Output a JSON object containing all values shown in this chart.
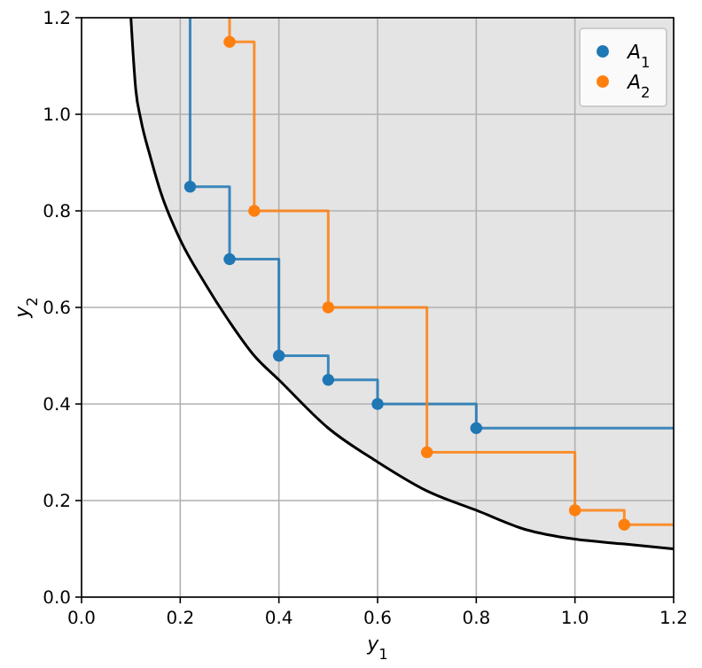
{
  "chart_data": {
    "type": "scatter",
    "xlabel": "y$_{1}$",
    "ylabel": "y$_{2}$",
    "xlim": [
      0,
      1.2
    ],
    "ylim": [
      0,
      1.2
    ],
    "xticks": [
      {
        "value": 0,
        "label": "0.0"
      },
      {
        "value": 0.2,
        "label": "0.2"
      },
      {
        "value": 0.4,
        "label": "0.4"
      },
      {
        "value": 0.6,
        "label": "0.6"
      },
      {
        "value": 0.8,
        "label": "0.8"
      },
      {
        "value": 1.0,
        "label": "1.0"
      },
      {
        "value": 1.2,
        "label": "1.2"
      }
    ],
    "yticks": [
      {
        "value": 0,
        "label": "0.0"
      },
      {
        "value": 0.2,
        "label": "0.2"
      },
      {
        "value": 0.4,
        "label": "0.4"
      },
      {
        "value": 0.6,
        "label": "0.6"
      },
      {
        "value": 0.8,
        "label": "0.8"
      },
      {
        "value": 1.0,
        "label": "1.0"
      },
      {
        "value": 1.2,
        "label": "1.2"
      }
    ],
    "grid": true,
    "legend": "top right",
    "series": [
      {
        "type": "line",
        "color": "#000000",
        "marker": "none",
        "x": [
          0.1,
          0.11,
          0.12,
          0.14,
          0.16,
          0.2,
          0.25,
          0.3,
          0.35,
          0.4,
          0.5,
          0.6,
          0.7,
          0.8,
          0.9,
          1.0,
          1.1,
          1.2
        ],
        "values": [
          1.2,
          1.05,
          0.99,
          0.91,
          0.84,
          0.74,
          0.65,
          0.57,
          0.5,
          0.45,
          0.35,
          0.28,
          0.22,
          0.18,
          0.14,
          0.12,
          0.11,
          0.1
        ],
        "lower": [
          1.2,
          1.05,
          0.99,
          0.91,
          0.84,
          0.74,
          0.65,
          0.57,
          0.5,
          0.45,
          0.35,
          0.28,
          0.22,
          0.18,
          0.14,
          0.12,
          0.11,
          0.1
        ],
        "upper": [
          1.2,
          1.2,
          1.2,
          1.2,
          1.2,
          1.2,
          1.2,
          1.2,
          1.2,
          1.2,
          1.2,
          1.2,
          1.2,
          1.2,
          1.2,
          1.2,
          1.2,
          1.2
        ]
      },
      {
        "type": "step",
        "color": "#1f77b4",
        "marker": "none",
        "x": [
          0.22,
          0.22,
          0.3,
          0.4,
          0.5,
          0.6,
          0.8,
          1.2
        ],
        "values": [
          1.2,
          0.85,
          0.7,
          0.5,
          0.45,
          0.4,
          0.35,
          0.35
        ]
      },
      {
        "type": "step",
        "color": "#ff7f0e",
        "marker": "none",
        "x": [
          0.3,
          0.3,
          0.35,
          0.5,
          0.7,
          1.0,
          1.1,
          1.2
        ],
        "values": [
          1.2,
          1.15,
          0.8,
          0.6,
          0.3,
          0.18,
          0.15,
          0.15
        ]
      },
      {
        "name": "A$_{1}$",
        "color": "#1f77b4",
        "marker": "circle",
        "x": [
          0.22,
          0.3,
          0.4,
          0.5,
          0.6,
          0.8
        ],
        "values": [
          0.85,
          0.7,
          0.5,
          0.45,
          0.4,
          0.35
        ]
      },
      {
        "name": "A$_{2}$",
        "color": "#ff7f0e",
        "marker": "circle",
        "x": [
          0.3,
          0.35,
          0.5,
          0.7,
          1.0,
          1.1
        ],
        "values": [
          1.15,
          0.8,
          0.6,
          0.3,
          0.18,
          0.15
        ]
      }
    ]
  }
}
